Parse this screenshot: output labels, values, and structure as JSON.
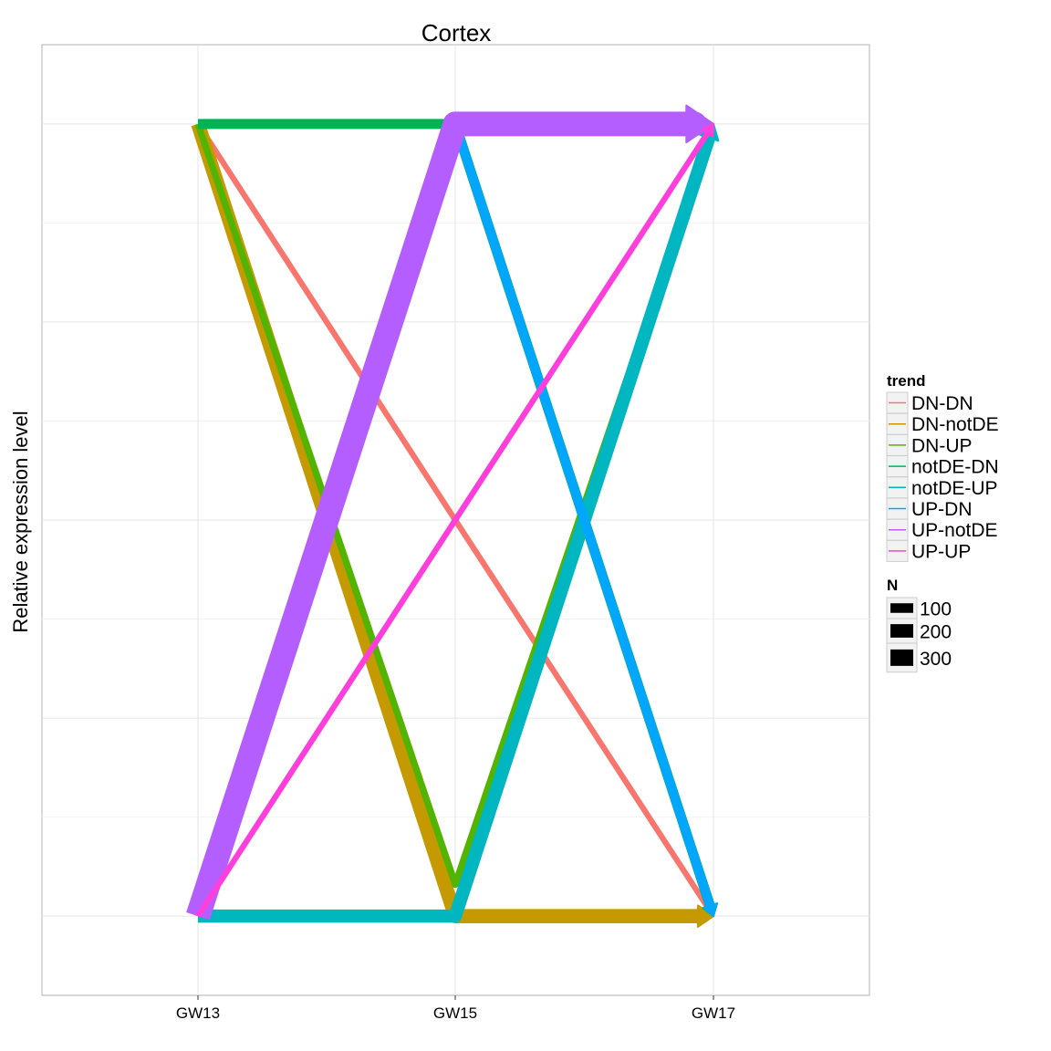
{
  "chart_data": {
    "type": "line",
    "title": "Cortex",
    "xlabel": "",
    "ylabel": "Relative expression level",
    "categories": [
      "GW13",
      "GW15",
      "GW17"
    ],
    "ylim": [
      -0.1,
      1.1
    ],
    "grid": true,
    "y_ticks_labeled": false,
    "legend_placement": "right",
    "series": [
      {
        "name": "DN-DN",
        "color": "#F8766D",
        "N": 18,
        "values": [
          1,
          0.5,
          0
        ]
      },
      {
        "name": "DN-notDE",
        "color": "#C49A00",
        "N": 110,
        "values": [
          1,
          0,
          0
        ]
      },
      {
        "name": "DN-UP",
        "color": "#53B400",
        "N": 25,
        "values": [
          1,
          0.04,
          1
        ]
      },
      {
        "name": "notDE-DN",
        "color": "#00B454",
        "N": 55,
        "values": [
          1,
          1,
          0
        ]
      },
      {
        "name": "notDE-UP",
        "color": "#00B6C0",
        "N": 95,
        "values": [
          0,
          0,
          1
        ]
      },
      {
        "name": "UP-DN",
        "color": "#00A6FF",
        "N": 45,
        "values": [
          0,
          1,
          0
        ]
      },
      {
        "name": "UP-notDE",
        "color": "#B55EFF",
        "N": 330,
        "values": [
          0,
          1,
          1
        ]
      },
      {
        "name": "UP-UP",
        "color": "#FF3EDB",
        "N": 18,
        "values": [
          0,
          0.5,
          1
        ]
      }
    ],
    "legend": {
      "trend_title": "trend",
      "size_title": "N",
      "size_breaks": [
        {
          "label": "100",
          "value": 100
        },
        {
          "label": "200",
          "value": 200
        },
        {
          "label": "300",
          "value": 300
        }
      ]
    }
  }
}
